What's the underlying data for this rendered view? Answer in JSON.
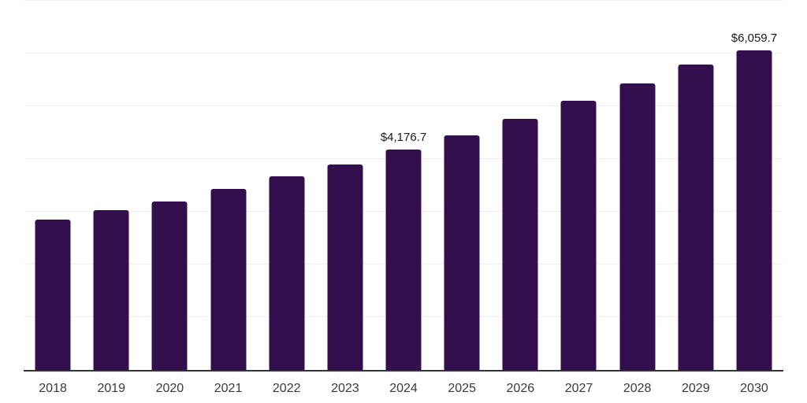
{
  "chart_data": {
    "type": "bar",
    "title": "",
    "xlabel": "",
    "ylabel": "",
    "categories": [
      "2018",
      "2019",
      "2020",
      "2021",
      "2022",
      "2023",
      "2024",
      "2025",
      "2026",
      "2027",
      "2028",
      "2029",
      "2030"
    ],
    "values": [
      2845,
      3025,
      3190,
      3440,
      3665,
      3895,
      4176.7,
      4455,
      4760,
      5110,
      5440,
      5795,
      6059.7
    ],
    "bar_labels": [
      "",
      "",
      "",
      "",
      "",
      "",
      "$4,176.7",
      "",
      "",
      "",
      "",
      "",
      "$6,059.7"
    ],
    "ylim": [
      0,
      7000
    ],
    "gridline_interval": 1000,
    "grid": true,
    "legend": false,
    "colors": {
      "bar": "#33104d",
      "gridline": "#f0f0f0",
      "axis_line": "#333333",
      "tick_label": "#3a3a3a",
      "data_label": "#1a1a1a",
      "background": "#ffffff"
    }
  }
}
